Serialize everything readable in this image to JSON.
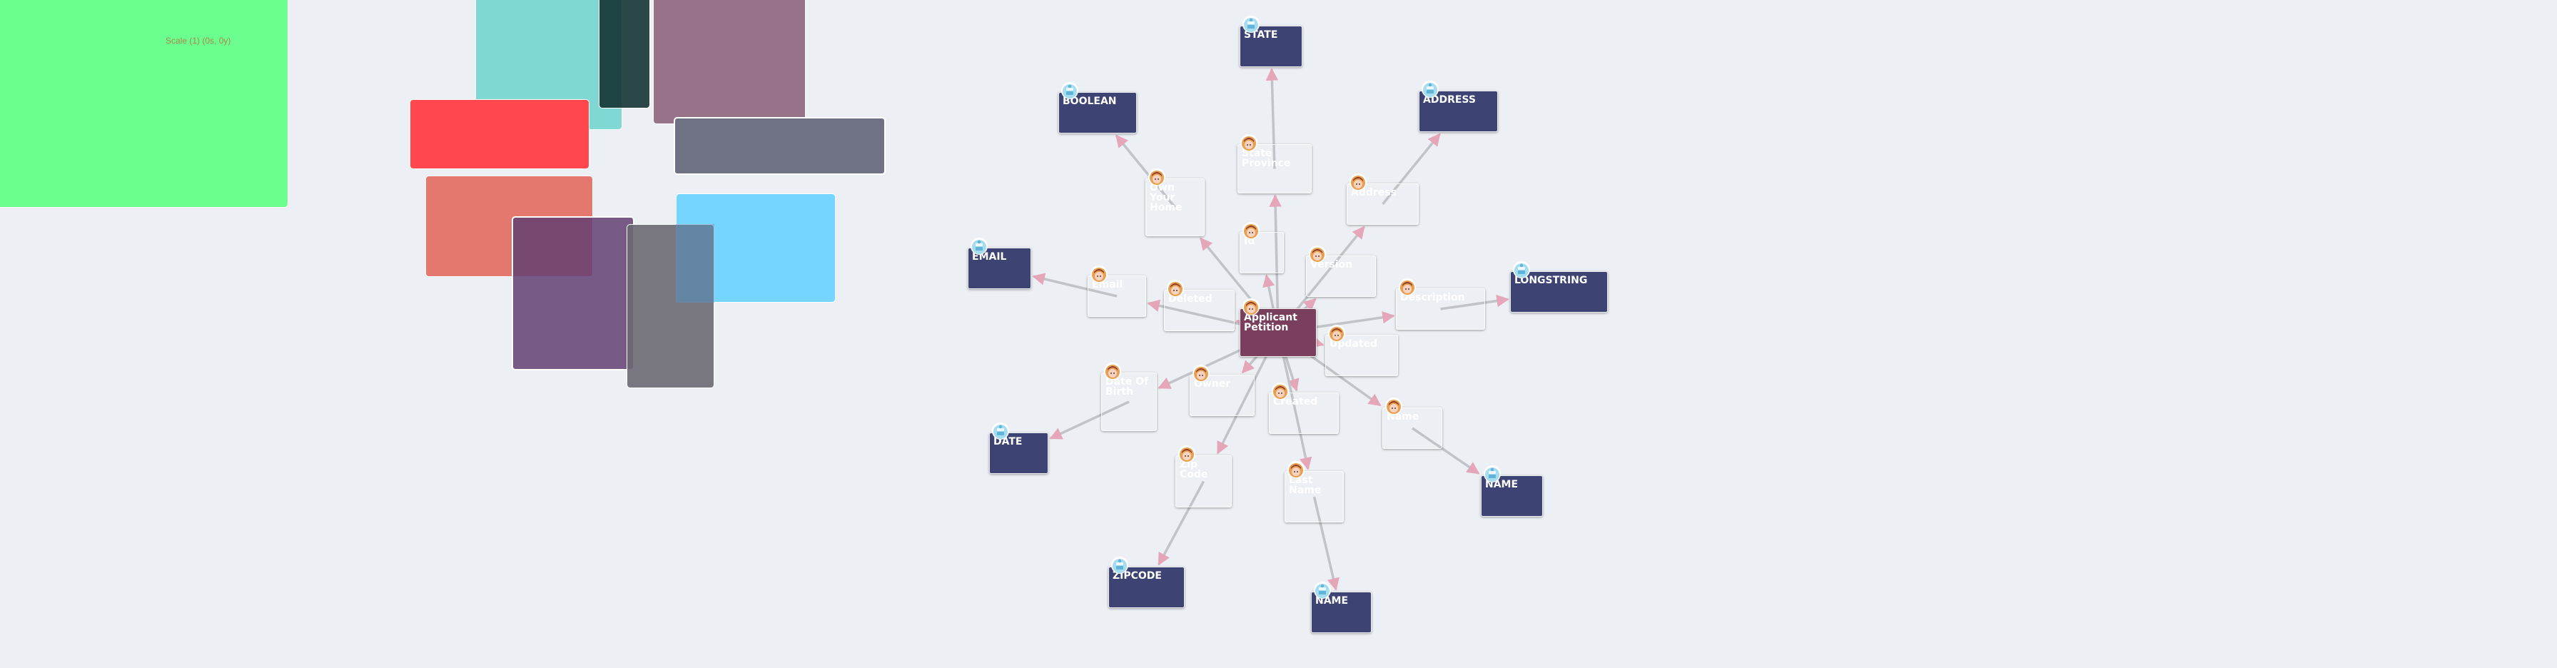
{
  "canvas": {
    "scale_label": "Scale (1) (0s, 0y)"
  },
  "colors": {
    "background": "#eceff4",
    "entity_node": "#7a3f5c",
    "attribute_node": "#433f45",
    "type_node": "#3d4373",
    "edge": "#c1c3c8",
    "arrowhead": "#e4a6b8",
    "person_icon": "#e8a050",
    "type_icon": "#a6dcef"
  },
  "decorative_shapes": [
    {
      "name": "green-rect",
      "color": "#6bff8f"
    },
    {
      "name": "teal-rect",
      "color": "#7fd8d3"
    },
    {
      "name": "red-rect",
      "color": "#ff474d"
    },
    {
      "name": "dark-teal-rect",
      "color": "#1f4445"
    },
    {
      "name": "mauve-rect",
      "color": "#957485"
    },
    {
      "name": "slate-rect",
      "color": "#6f7283"
    },
    {
      "name": "salmon-rect",
      "color": "#e4776e"
    },
    {
      "name": "cyan-rect",
      "color": "#76d5ff"
    },
    {
      "name": "purple-rect",
      "color": "#775c80"
    },
    {
      "name": "gray-rect",
      "color": "#78747d"
    }
  ],
  "graph": {
    "nodes": [
      {
        "id": "applicant",
        "label": "Applicant Petition",
        "kind": "entity",
        "icon": "person"
      },
      {
        "id": "state",
        "label": "STATE",
        "kind": "type",
        "icon": "type"
      },
      {
        "id": "boolean",
        "label": "BOOLEAN",
        "kind": "type",
        "icon": "type"
      },
      {
        "id": "address_t",
        "label": "ADDRESS",
        "kind": "type",
        "icon": "type"
      },
      {
        "id": "email_t",
        "label": "EMAIL",
        "kind": "type",
        "icon": "type"
      },
      {
        "id": "longstring",
        "label": "LONGSTRING",
        "kind": "type",
        "icon": "type"
      },
      {
        "id": "date_t",
        "label": "DATE",
        "kind": "type",
        "icon": "type"
      },
      {
        "id": "name_t1",
        "label": "NAME",
        "kind": "type",
        "icon": "type"
      },
      {
        "id": "zipcode_t",
        "label": "ZIPCODE",
        "kind": "type",
        "icon": "type"
      },
      {
        "id": "name_t2",
        "label": "NAME",
        "kind": "type",
        "icon": "type"
      },
      {
        "id": "state_province",
        "label": "State Province",
        "kind": "attribute",
        "icon": "person"
      },
      {
        "id": "own_home",
        "label": "Own Your Home",
        "kind": "attribute",
        "icon": "person"
      },
      {
        "id": "address",
        "label": "Address",
        "kind": "attribute",
        "icon": "person"
      },
      {
        "id": "idattr",
        "label": "Id",
        "kind": "attribute",
        "icon": "person"
      },
      {
        "id": "version",
        "label": "Version",
        "kind": "attribute",
        "icon": "person"
      },
      {
        "id": "email",
        "label": "Email",
        "kind": "attribute",
        "icon": "person"
      },
      {
        "id": "deleted",
        "label": "Deleted",
        "kind": "attribute",
        "icon": "person"
      },
      {
        "id": "description",
        "label": "Description",
        "kind": "attribute",
        "icon": "person"
      },
      {
        "id": "updated",
        "label": "Updated",
        "kind": "attribute",
        "icon": "person"
      },
      {
        "id": "dob",
        "label": "Date Of Birth",
        "kind": "attribute",
        "icon": "person"
      },
      {
        "id": "owner",
        "label": "Owner",
        "kind": "attribute",
        "icon": "person"
      },
      {
        "id": "created",
        "label": "Created",
        "kind": "attribute",
        "icon": "person"
      },
      {
        "id": "name",
        "label": "Name",
        "kind": "attribute",
        "icon": "person"
      },
      {
        "id": "zip",
        "label": "Zip Code",
        "kind": "attribute",
        "icon": "person"
      },
      {
        "id": "last_name",
        "label": "Last Name",
        "kind": "attribute",
        "icon": "person"
      }
    ],
    "edges": [
      {
        "from": "applicant",
        "to": "state_province"
      },
      {
        "from": "applicant",
        "to": "own_home"
      },
      {
        "from": "applicant",
        "to": "address"
      },
      {
        "from": "applicant",
        "to": "idattr"
      },
      {
        "from": "applicant",
        "to": "version"
      },
      {
        "from": "applicant",
        "to": "email"
      },
      {
        "from": "applicant",
        "to": "deleted"
      },
      {
        "from": "applicant",
        "to": "description"
      },
      {
        "from": "applicant",
        "to": "updated"
      },
      {
        "from": "applicant",
        "to": "dob"
      },
      {
        "from": "applicant",
        "to": "owner"
      },
      {
        "from": "applicant",
        "to": "created"
      },
      {
        "from": "applicant",
        "to": "name"
      },
      {
        "from": "applicant",
        "to": "zip"
      },
      {
        "from": "applicant",
        "to": "last_name"
      },
      {
        "from": "state_province",
        "to": "state"
      },
      {
        "from": "own_home",
        "to": "boolean"
      },
      {
        "from": "address",
        "to": "address_t"
      },
      {
        "from": "email",
        "to": "email_t"
      },
      {
        "from": "description",
        "to": "longstring"
      },
      {
        "from": "dob",
        "to": "date_t"
      },
      {
        "from": "name",
        "to": "name_t1"
      },
      {
        "from": "zip",
        "to": "zipcode_t"
      },
      {
        "from": "last_name",
        "to": "name_t2"
      }
    ]
  }
}
